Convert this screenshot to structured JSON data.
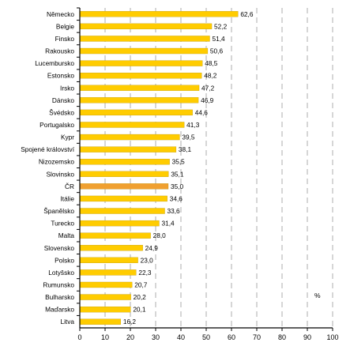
{
  "chart_data": {
    "type": "bar",
    "orientation": "horizontal",
    "title": "",
    "xlabel": "",
    "ylabel": "",
    "unit_label": "%",
    "xlim": [
      0,
      100
    ],
    "x_ticks": [
      "0",
      "10",
      "20",
      "30",
      "40",
      "50",
      "60",
      "70",
      "80",
      "90",
      "100"
    ],
    "grid": "vertical dashed",
    "categories": [
      "Německo",
      "Belgie",
      "Finsko",
      "Rakousko",
      "Lucembursko",
      "Estonsko",
      "Irsko",
      "Dánsko",
      "Švédsko",
      "Portugalsko",
      "Kypr",
      "Spojené království",
      "Nizozemsko",
      "Slovinsko",
      "ČR",
      "Itálie",
      "Španělsko",
      "Turecko",
      "Malta",
      "Slovensko",
      "Polsko",
      "Lotyšsko",
      "Rumunsko",
      "Bulharsko",
      "Maďarsko",
      "Litva"
    ],
    "values": [
      62.6,
      52.2,
      51.4,
      50.6,
      48.5,
      48.2,
      47.2,
      46.9,
      44.6,
      41.3,
      39.5,
      38.1,
      35.5,
      35.1,
      35.0,
      34.6,
      33.6,
      31.4,
      28.0,
      24.9,
      23.0,
      22.3,
      20.7,
      20.2,
      20.1,
      16.2
    ],
    "value_labels": [
      "62,6",
      "52,2",
      "51,4",
      "50,6",
      "48,5",
      "48,2",
      "47,2",
      "46,9",
      "44,6",
      "41,3",
      "39,5",
      "38,1",
      "35,5",
      "35,1",
      "35,0",
      "34,6",
      "33,6",
      "31,4",
      "28,0",
      "24,9",
      "23,0",
      "22,3",
      "20,7",
      "20,2",
      "20,1",
      "16,2"
    ],
    "highlight_category": "ČR",
    "colors": {
      "bar": "#FFCC00",
      "bar_highlight": "#F0A030",
      "bar_edge": "#B38F00",
      "grid": "#9a9a9a",
      "axis": "#000000"
    }
  }
}
